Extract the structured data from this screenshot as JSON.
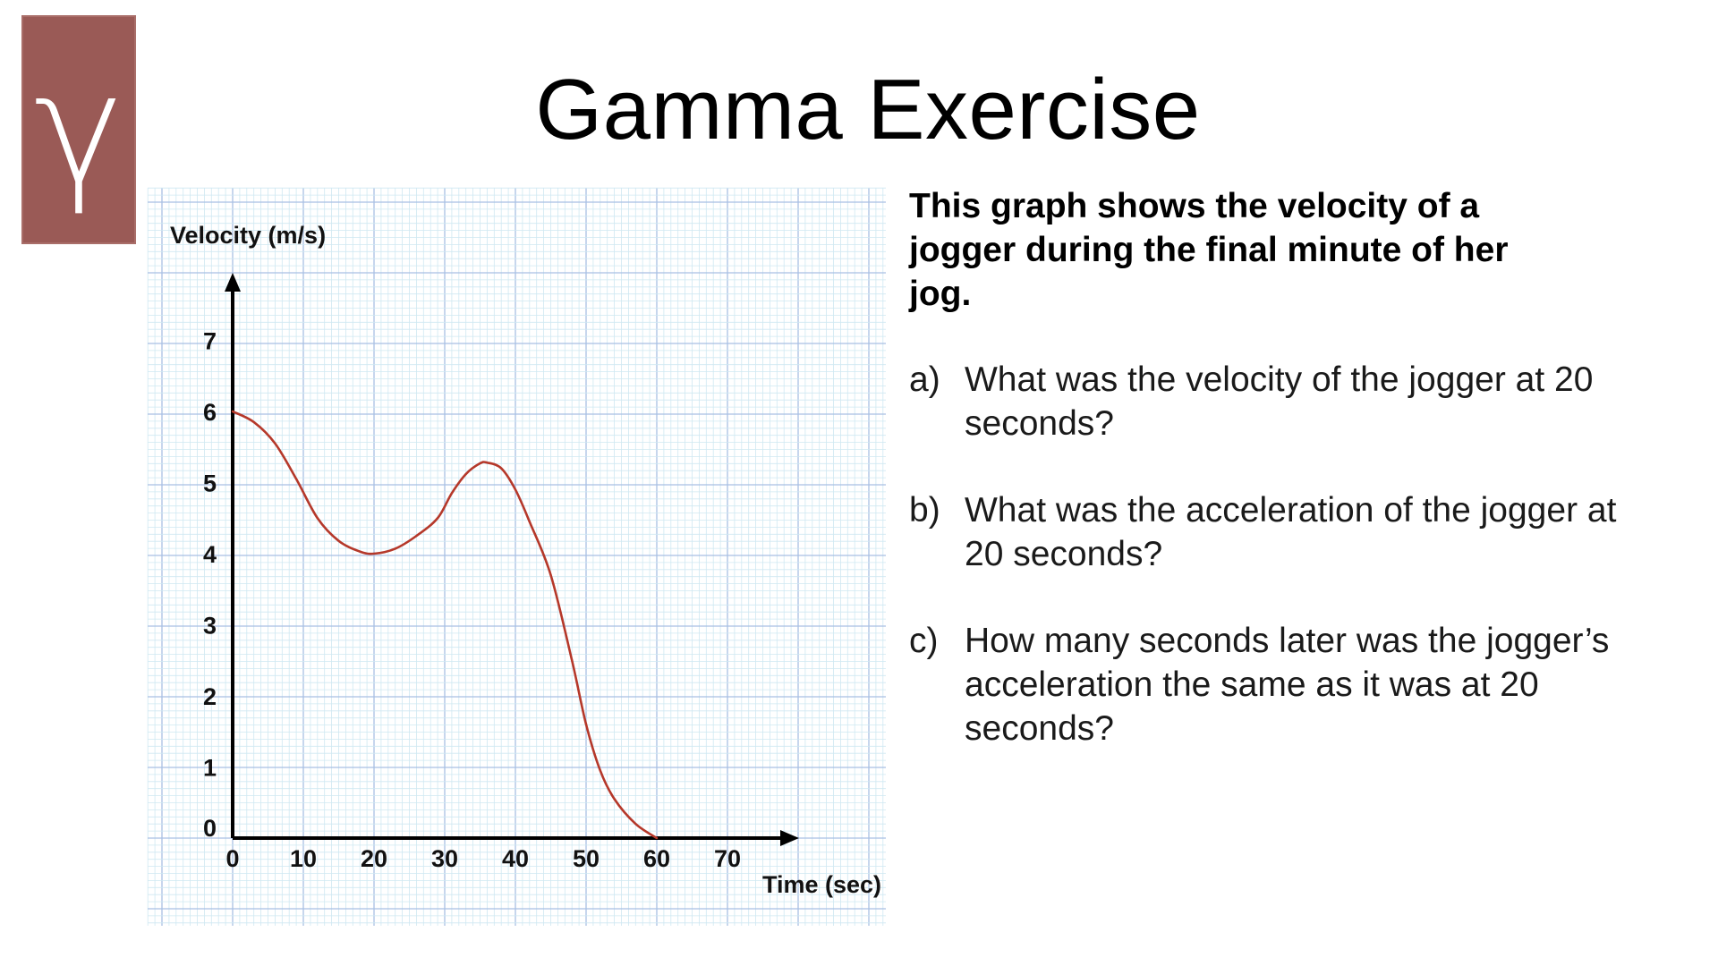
{
  "logo": {
    "glyph": "γ",
    "color": "#9a5a56"
  },
  "title": "Gamma Exercise",
  "description": "This graph shows the velocity of a jogger during the final minute of her jog.",
  "questions": [
    {
      "marker": "a)",
      "text": "What was the velocity of the jogger at 20 seconds?"
    },
    {
      "marker": "b)",
      "text": "What was the acceleration of the jogger at 20 seconds?"
    },
    {
      "marker": "c)",
      "text": "How many seconds later was the jogger’s acceleration the same as it was at 20 seconds?"
    }
  ],
  "chart_data": {
    "type": "line",
    "title": "",
    "xlabel": "Time (sec)",
    "ylabel": "Velocity (m/s)",
    "xlim": [
      0,
      80
    ],
    "ylim": [
      0,
      8
    ],
    "x_ticks": [
      0,
      10,
      20,
      30,
      40,
      50,
      60,
      70
    ],
    "y_ticks": [
      0,
      1,
      2,
      3,
      4,
      5,
      6,
      7
    ],
    "grid": true,
    "series": [
      {
        "color": "#b5382a",
        "x": [
          0,
          3,
          6,
          9,
          12,
          15,
          18,
          20,
          23,
          26,
          29,
          31,
          33,
          35,
          36,
          38,
          40,
          42,
          45,
          48,
          50,
          52,
          54,
          57,
          60
        ],
        "y": [
          6.0,
          5.85,
          5.55,
          5.05,
          4.5,
          4.18,
          4.03,
          4.0,
          4.07,
          4.25,
          4.5,
          4.85,
          5.12,
          5.27,
          5.28,
          5.2,
          4.9,
          4.45,
          3.7,
          2.5,
          1.6,
          0.95,
          0.55,
          0.2,
          0.0
        ]
      }
    ]
  }
}
